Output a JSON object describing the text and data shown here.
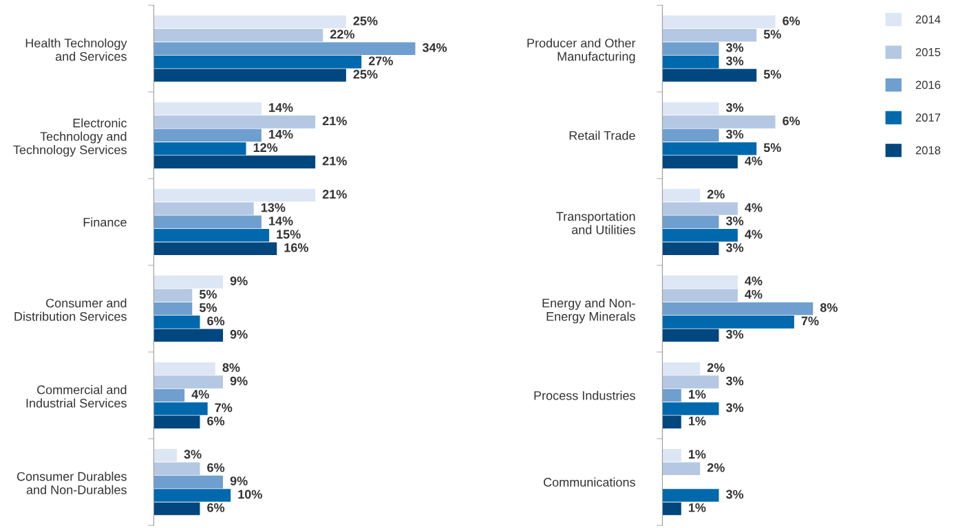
{
  "chart_data": [
    {
      "type": "bar",
      "orientation": "horizontal",
      "legend": "top right",
      "categories": [
        "Health Technology\nand Services",
        "Electronic\nTechnology and\nTechnology Services",
        "Finance",
        "Consumer and\nDistribution Services",
        "Commercial and\nIndustrial Services",
        "Consumer Durables\nand Non-Durables"
      ],
      "series": [
        {
          "name": "2014",
          "color": "#dce6f4",
          "values": [
            25,
            14,
            21,
            9,
            8,
            3
          ],
          "value_labels": [
            "25%",
            "14%",
            "21%",
            "9%",
            "8%",
            "3%"
          ]
        },
        {
          "name": "2015",
          "color": "#b4c8e4",
          "values": [
            22,
            21,
            13,
            5,
            9,
            6
          ],
          "value_labels": [
            "22%",
            "21%",
            "13%",
            "5%",
            "9%",
            "6%"
          ]
        },
        {
          "name": "2016",
          "color": "#6f9fcf",
          "values": [
            34,
            14,
            14,
            5,
            4,
            9
          ],
          "value_labels": [
            "34%",
            "14%",
            "14%",
            "5%",
            "4%",
            "9%"
          ]
        },
        {
          "name": "2017",
          "color": "#0068ad",
          "values": [
            27,
            12,
            15,
            6,
            7,
            10
          ],
          "value_labels": [
            "27%",
            "12%",
            "15%",
            "6%",
            "7%",
            "10%"
          ]
        },
        {
          "name": "2018",
          "color": "#00467f",
          "values": [
            25,
            21,
            16,
            9,
            6,
            6
          ],
          "value_labels": [
            "25%",
            "21%",
            "16%",
            "9%",
            "6%",
            "6%"
          ]
        }
      ]
    },
    {
      "type": "bar",
      "orientation": "horizontal",
      "categories": [
        "Producer and Other\nManufacturing",
        "Retail Trade",
        "Transportation\nand Utilities",
        "Energy and Non-\nEnergy Minerals",
        "Process Industries",
        "Communications"
      ],
      "series": [
        {
          "name": "2014",
          "color": "#dce6f4",
          "values": [
            6,
            3,
            2,
            4,
            2,
            1
          ],
          "value_labels": [
            "6%",
            "3%",
            "2%",
            "4%",
            "2%",
            "1%"
          ]
        },
        {
          "name": "2015",
          "color": "#b4c8e4",
          "values": [
            5,
            6,
            4,
            4,
            3,
            2
          ],
          "value_labels": [
            "5%",
            "6%",
            "4%",
            "4%",
            "3%",
            "2%"
          ]
        },
        {
          "name": "2016",
          "color": "#6f9fcf",
          "values": [
            3,
            3,
            3,
            8,
            1,
            null
          ],
          "value_labels": [
            "3%",
            "3%",
            "3%",
            "8%",
            "1%",
            null
          ]
        },
        {
          "name": "2017",
          "color": "#0068ad",
          "values": [
            3,
            5,
            4,
            7,
            3,
            3
          ],
          "value_labels": [
            "3%",
            "5%",
            "4%",
            "7%",
            "3%",
            "3%"
          ]
        },
        {
          "name": "2018",
          "color": "#00467f",
          "values": [
            5,
            4,
            3,
            3,
            1,
            1
          ],
          "value_labels": [
            "5%",
            "4%",
            "3%",
            "3%",
            "1%",
            "1%"
          ]
        }
      ]
    }
  ]
}
